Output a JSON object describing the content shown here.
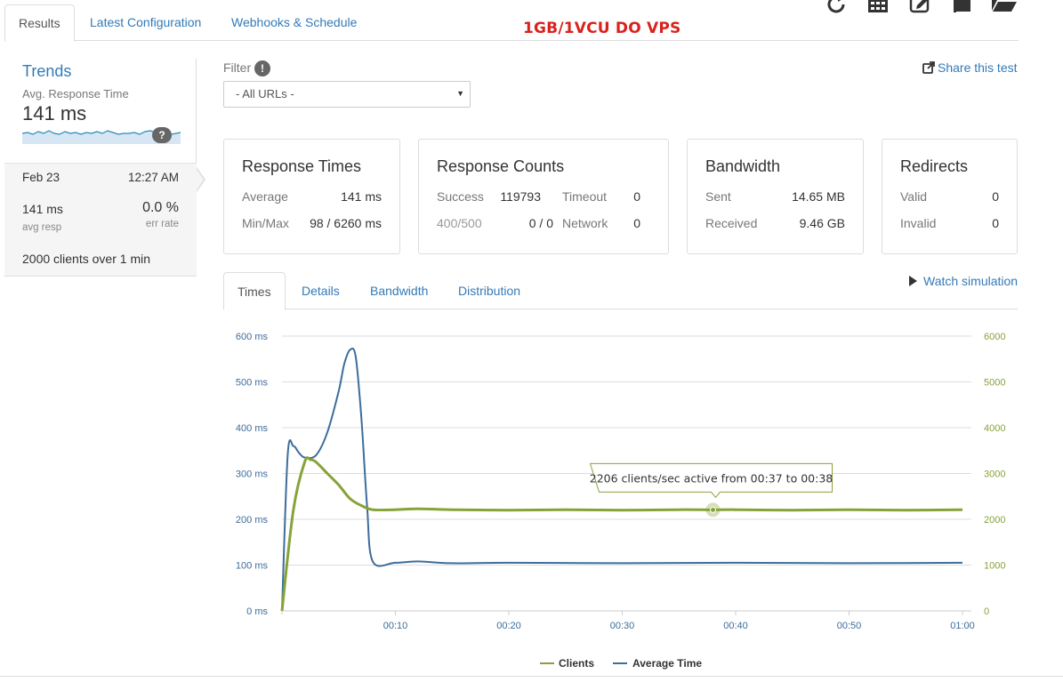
{
  "tabs": [
    {
      "label": "Results",
      "active": true
    },
    {
      "label": "Latest Configuration",
      "active": false
    },
    {
      "label": "Webhooks & Schedule",
      "active": false
    }
  ],
  "banner_title": "1GB/1VCU DO VPS",
  "toolbar_icons": [
    "refresh-icon",
    "calendar-icon",
    "edit-icon",
    "copy-icon",
    "folder-open-icon"
  ],
  "sidebar": {
    "title": "Trends",
    "metric_label": "Avg. Response Time",
    "metric_value": "141 ms",
    "help_glyph": "?",
    "entry": {
      "date": "Feb 23",
      "time": "12:27 AM",
      "avg_resp_value": "141 ms",
      "avg_resp_label": "avg resp",
      "err_rate_value": "0.0 %",
      "err_rate_label": "err rate",
      "summary_count": "2000",
      "summary_mid": "clients over",
      "summary_dur": "1",
      "summary_unit": "min"
    }
  },
  "filter": {
    "label": "Filter",
    "info_glyph": "!",
    "selected": "- All URLs -",
    "caret": "▼"
  },
  "share_label": "Share this test",
  "stats": {
    "response_times": {
      "title": "Response Times",
      "avg_label": "Average",
      "avg_value": "141 ms",
      "minmax_label": "Min/Max",
      "minmax_value": "98 / 6260 ms"
    },
    "response_counts": {
      "title": "Response Counts",
      "success_label": "Success",
      "success_value": "119793",
      "timeout_label": "Timeout",
      "timeout_value": "0",
      "error_label": "400/500",
      "error_value": "0 / 0",
      "network_label": "Network",
      "network_value": "0"
    },
    "bandwidth": {
      "title": "Bandwidth",
      "sent_label": "Sent",
      "sent_value": "14.65 MB",
      "received_label": "Received",
      "received_value": "9.46 GB"
    },
    "redirects": {
      "title": "Redirects",
      "valid_label": "Valid",
      "valid_value": "0",
      "invalid_label": "Invalid",
      "invalid_value": "0"
    }
  },
  "chart_tabs": [
    {
      "label": "Times",
      "active": true
    },
    {
      "label": "Details",
      "active": false
    },
    {
      "label": "Bandwidth",
      "active": false
    },
    {
      "label": "Distribution",
      "active": false
    }
  ],
  "watch_label": "Watch simulation",
  "colors": {
    "clients": "#86a33a",
    "average_time": "#3d6d9b",
    "link": "#337ab7",
    "title_red": "#d9221c"
  },
  "chart_data": {
    "type": "line",
    "x_ticks": [
      "00:10",
      "00:20",
      "00:30",
      "00:40",
      "00:50",
      "01:00"
    ],
    "x_tick_seconds": [
      10,
      20,
      30,
      40,
      50,
      60
    ],
    "xlim": [
      0,
      60
    ],
    "y_left_ticks": [
      "0 ms",
      "100 ms",
      "200 ms",
      "300 ms",
      "400 ms",
      "500 ms",
      "600 ms"
    ],
    "y_left_lim": [
      0,
      600
    ],
    "y_right_ticks": [
      "0",
      "1000",
      "2000",
      "3000",
      "4000",
      "5000",
      "6000"
    ],
    "y_right_lim": [
      0,
      6000
    ],
    "grid": true,
    "legend_position": "bottom",
    "series": [
      {
        "name": "Clients",
        "axis": "right",
        "x": [
          0,
          1,
          2,
          2.5,
          3,
          4,
          5,
          6,
          7,
          8,
          10,
          12,
          15,
          20,
          25,
          30,
          35,
          38,
          40,
          45,
          50,
          55,
          60
        ],
        "values": [
          0,
          2200,
          3250,
          3300,
          3250,
          3000,
          2750,
          2450,
          2300,
          2210,
          2210,
          2230,
          2210,
          2200,
          2210,
          2200,
          2210,
          2206,
          2210,
          2200,
          2210,
          2200,
          2210
        ]
      },
      {
        "name": "Average Time",
        "axis": "left",
        "x": [
          0,
          0.5,
          1,
          1.5,
          2,
          3,
          4,
          5,
          5.5,
          6,
          6.5,
          7,
          7.5,
          8,
          10,
          12,
          15,
          20,
          30,
          40,
          50,
          60
        ],
        "values": [
          0,
          340,
          360,
          345,
          335,
          340,
          390,
          480,
          540,
          570,
          555,
          420,
          230,
          108,
          105,
          108,
          104,
          105,
          104,
          105,
          104,
          105
        ]
      }
    ],
    "tooltip": {
      "text": "2206 clients/sec active from 00:37 to 00:38",
      "x": 38,
      "value": 2206
    }
  }
}
